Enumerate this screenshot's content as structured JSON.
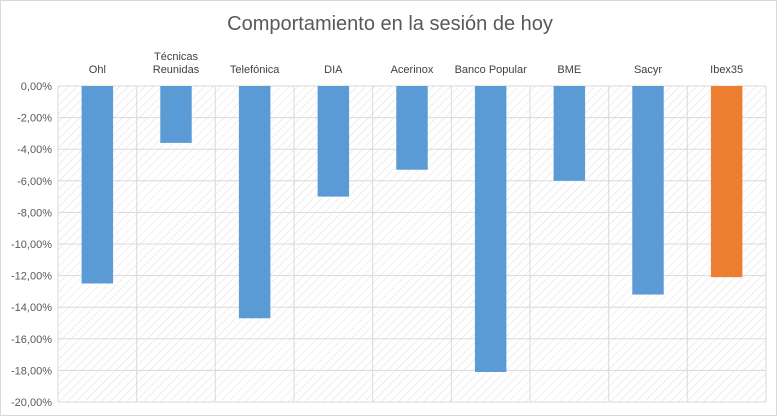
{
  "chart_data": {
    "type": "bar",
    "title": "Comportamiento en la sesión de hoy",
    "categories": [
      "Ohl",
      "Técnicas Reunidas",
      "Telefónica",
      "DIA",
      "Acerinox",
      "Banco Popular",
      "BME",
      "Sacyr",
      "Ibex35"
    ],
    "category_lines": [
      [
        "Ohl"
      ],
      [
        "Técnicas",
        "Reunidas"
      ],
      [
        "Telefónica"
      ],
      [
        "DIA"
      ],
      [
        "Acerinox"
      ],
      [
        "Banco Popular"
      ],
      [
        "BME"
      ],
      [
        "Sacyr"
      ],
      [
        "Ibex35"
      ]
    ],
    "values": [
      -12.5,
      -3.6,
      -14.7,
      -7.0,
      -5.3,
      -18.1,
      -6.0,
      -13.2,
      -12.1
    ],
    "ylim": [
      -20,
      0
    ],
    "yticks": [
      0,
      -2,
      -4,
      -6,
      -8,
      -10,
      -12,
      -14,
      -16,
      -18,
      -20
    ],
    "ytick_labels": [
      "0,00%",
      "-2,00%",
      "-4,00%",
      "-6,00%",
      "-8,00%",
      "-10,00%",
      "-12,00%",
      "-14,00%",
      "-16,00%",
      "-18,00%",
      "-20,00%"
    ],
    "grid": true,
    "xlabel": "",
    "ylabel": "",
    "colors": {
      "bar": "#5b9bd5",
      "highlight": "#ed7d31",
      "highlight_category": "Ibex35",
      "grid": "#d9d9d9",
      "hatch": "#e3e3e3"
    }
  }
}
